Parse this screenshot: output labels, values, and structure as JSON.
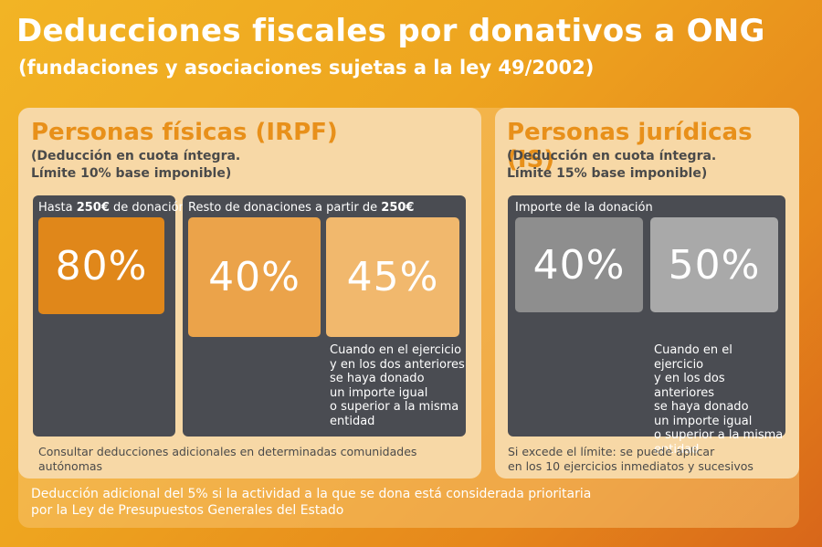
{
  "header": {
    "title": "Deducciones fiscales por donativos a ONG",
    "subtitle": "(fundaciones y asociaciones sujetas a la ley 49/2002)"
  },
  "irpf": {
    "heading": "Personas físicas (IRPF)",
    "note": "(Deducción en cuota íntegra.\nLímite 10% base  imponible)",
    "box1": {
      "label_pre": "Hasta ",
      "label_bold": "250€",
      "label_post": " de donación",
      "value": "80%"
    },
    "box2": {
      "label_pre": "Resto de donaciones a partir de ",
      "label_bold": "250€",
      "value_a": "40%",
      "value_b": "45%"
    },
    "condition": "Cuando en el ejercicio\ny en los dos anteriores\nse haya donado\nun importe igual\no superior a la misma\nentidad",
    "footnote": "Consultar deducciones adicionales en determinadas comunidades autónomas"
  },
  "is": {
    "heading": "Personas jurídicas (IS)",
    "note": "(Deducción en cuota íntegra.\nLímite 15% base  imponible)",
    "box": {
      "label": "Importe de la donación",
      "value_a": "40%",
      "value_b": "50%"
    },
    "condition": "Cuando en el ejercicio\ny en los dos anteriores\nse haya donado\nun importe igual\no superior a la misma\nentidad",
    "footnote": "Si excede el límite: se puede aplicar\nen los 10 ejercicios inmediatos y sucesivos"
  },
  "bottom_note": "Deducción adicional del 5% si la actividad a la que se dona está considerada prioritaria\npor la Ley de Presupuestos Generales del Estado",
  "colors": {
    "heading_orange": "#e8901a",
    "dark_box": "#4a4c52",
    "pct_80": "#e0871a",
    "pct_40_irpf": "#eba34a",
    "pct_45": "#f1b86d",
    "pct_40_is": "#8e8e8e",
    "pct_50": "#a9a9a9"
  }
}
